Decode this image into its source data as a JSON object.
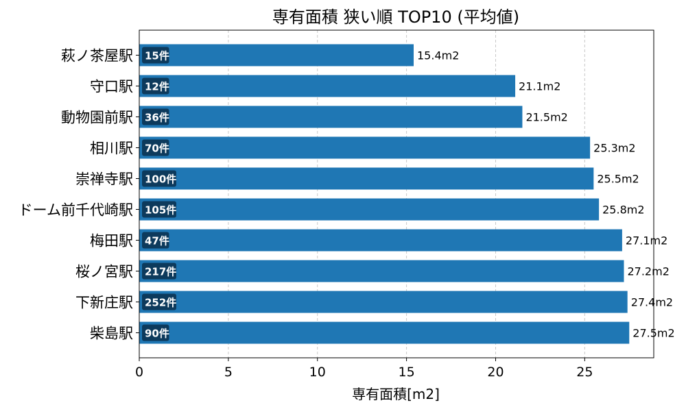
{
  "chart_data": {
    "type": "bar",
    "orientation": "horizontal",
    "title": "専有面積 狭い順 TOP10 (平均値)",
    "xlabel": "専有面積[m2]",
    "ylabel": "",
    "xlim": [
      0,
      28.875
    ],
    "xticks": [
      0,
      5,
      10,
      15,
      20,
      25
    ],
    "grid": "x-dashed",
    "colors": {
      "bar": "#1f77b4",
      "badge": "#0d3a5c",
      "grid": "#c8c8c8",
      "text": "#000000"
    },
    "categories": [
      "萩ノ茶屋駅",
      "守口駅",
      "動物園前駅",
      "相川駅",
      "崇禅寺駅",
      "ドーム前千代崎駅",
      "梅田駅",
      "桜ノ宮駅",
      "下新庄駅",
      "柴島駅"
    ],
    "values": [
      15.4,
      21.1,
      21.5,
      25.3,
      25.5,
      25.8,
      27.1,
      27.2,
      27.4,
      27.5
    ],
    "value_labels": [
      "15.4m2",
      "21.1m2",
      "21.5m2",
      "25.3m2",
      "25.5m2",
      "25.8m2",
      "27.1m2",
      "27.2m2",
      "27.4m2",
      "27.5m2"
    ],
    "counts": [
      "15件",
      "12件",
      "36件",
      "70件",
      "100件",
      "105件",
      "47件",
      "217件",
      "252件",
      "90件"
    ]
  }
}
